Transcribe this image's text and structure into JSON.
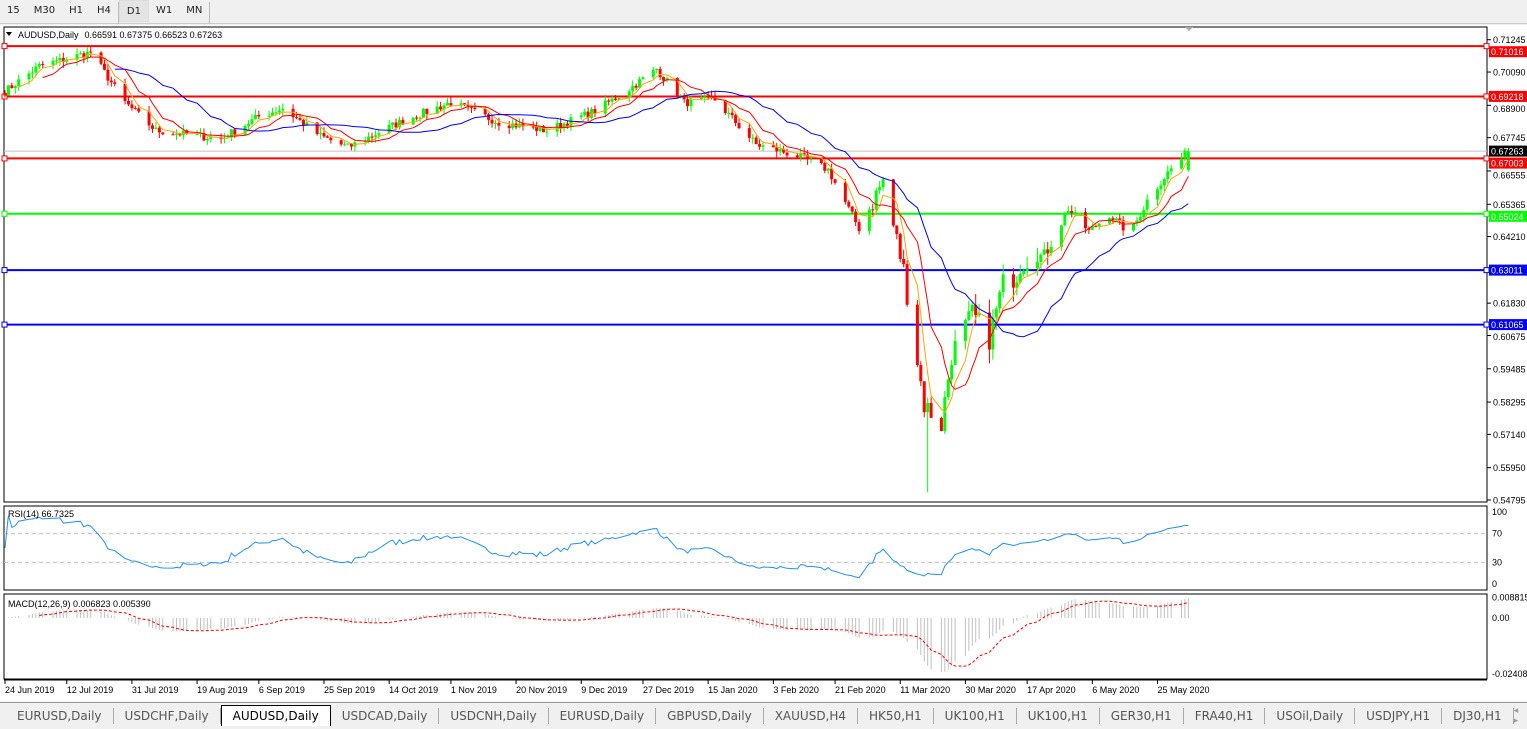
{
  "timeframes": [
    {
      "label": "15"
    },
    {
      "label": "M30"
    },
    {
      "label": "H1"
    },
    {
      "label": "H4"
    },
    {
      "label": "D1",
      "active": true
    },
    {
      "label": "W1"
    },
    {
      "label": "MN"
    }
  ],
  "chart": {
    "symbol_label": "AUDUSD,Daily",
    "ohlc": "0.66591 0.67375 0.66523 0.67263",
    "current_price": "0.67263"
  },
  "colors": {
    "bull": "#00ff00",
    "bear": "#ff0000",
    "ma_fast": "#ffa500",
    "ma_mid": "#ff0000",
    "ma_slow": "#0000ff",
    "rsi": "#1e90ff",
    "macd_signal": "#ff0000",
    "macd_hist": "#c0c0c0"
  },
  "chart_data": {
    "type": "candlestick",
    "price_axis": {
      "ticks": [
        "0.71245",
        "0.70090",
        "0.68900",
        "0.67745",
        "0.66555",
        "0.65365",
        "0.64210",
        "0.61830",
        "0.60675",
        "0.59485",
        "0.58295",
        "0.57140",
        "0.55950",
        "0.54795"
      ],
      "range": [
        0.54795,
        0.7158
      ]
    },
    "horizontal_levels": [
      {
        "value": "0.71016",
        "color": "#ff0000"
      },
      {
        "value": "0.69218",
        "color": "#ff0000"
      },
      {
        "value": "0.67003",
        "color": "#ff0000"
      },
      {
        "value": "0.65024",
        "color": "#00ff00"
      },
      {
        "value": "0.63011",
        "color": "#0000ff"
      },
      {
        "value": "0.61065",
        "color": "#0000ff"
      }
    ],
    "x_ticks": [
      "24 Jun 2019",
      "12 Jul 2019",
      "31 Jul 2019",
      "19 Aug 2019",
      "6 Sep 2019",
      "25 Sep 2019",
      "14 Oct 2019",
      "1 Nov 2019",
      "20 Nov 2019",
      "9 Dec 2019",
      "27 Dec 2019",
      "15 Jan 2020",
      "3 Feb 2020",
      "21 Feb 2020",
      "11 Mar 2020",
      "30 Mar 2020",
      "17 Apr 2020",
      "6 May 2020",
      "25 May 2020"
    ],
    "x_tick_dates": [
      "2019-06-24",
      "2019-07-12",
      "2019-07-31",
      "2019-08-19",
      "2019-09-06",
      "2019-09-25",
      "2019-10-14",
      "2019-11-01",
      "2019-11-20",
      "2019-12-09",
      "2019-12-27",
      "2020-01-15",
      "2020-02-03",
      "2020-02-21",
      "2020-03-11",
      "2020-03-30",
      "2020-04-17",
      "2020-05-06",
      "2020-05-25"
    ],
    "approx_closes": [
      [
        "2019-06-24",
        0.694
      ],
      [
        "2019-07-04",
        0.703
      ],
      [
        "2019-07-19",
        0.708
      ],
      [
        "2019-07-29",
        0.69
      ],
      [
        "2019-08-07",
        0.68
      ],
      [
        "2019-08-26",
        0.677
      ],
      [
        "2019-09-06",
        0.685
      ],
      [
        "2019-09-13",
        0.688
      ],
      [
        "2019-09-24",
        0.678
      ],
      [
        "2019-10-02",
        0.674
      ],
      [
        "2019-10-12",
        0.68
      ],
      [
        "2019-10-19",
        0.684
      ],
      [
        "2019-11-01",
        0.69
      ],
      [
        "2019-11-15",
        0.683
      ],
      [
        "2019-11-29",
        0.68
      ],
      [
        "2019-12-13",
        0.687
      ],
      [
        "2019-12-22",
        0.694
      ],
      [
        "2019-12-31",
        0.702
      ],
      [
        "2020-01-08",
        0.69
      ],
      [
        "2020-01-17",
        0.691
      ],
      [
        "2020-01-29",
        0.675
      ],
      [
        "2020-02-10",
        0.671
      ],
      [
        "2020-02-19",
        0.666
      ],
      [
        "2020-02-28",
        0.645
      ],
      [
        "2020-03-06",
        0.662
      ],
      [
        "2020-03-12",
        0.63
      ],
      [
        "2020-03-18",
        0.582
      ],
      [
        "2020-03-23",
        0.575
      ],
      [
        "2020-03-26",
        0.6
      ],
      [
        "2020-04-01",
        0.614
      ],
      [
        "2020-04-06",
        0.606
      ],
      [
        "2020-04-10",
        0.625
      ],
      [
        "2020-04-17",
        0.632
      ],
      [
        "2020-04-23",
        0.637
      ],
      [
        "2020-04-29",
        0.652
      ],
      [
        "2020-05-05",
        0.644
      ],
      [
        "2020-05-11",
        0.65
      ],
      [
        "2020-05-17",
        0.643
      ],
      [
        "2020-05-22",
        0.655
      ],
      [
        "2020-05-28",
        0.665
      ],
      [
        "2020-06-03",
        0.67263
      ]
    ],
    "rsi": {
      "label": "RSI(14) 66.7325",
      "ticks": [
        "100",
        "70",
        "30",
        "0"
      ],
      "levels": [
        70,
        30
      ]
    },
    "macd": {
      "label": "MACD(12,26,9) 0.006823 0.005390",
      "ticks": [
        "0.008815",
        "0.00",
        "-0.02408"
      ],
      "range": [
        -0.02408,
        0.008815
      ]
    }
  },
  "tabs": [
    {
      "label": "EURUSD,Daily"
    },
    {
      "label": "USDCHF,Daily"
    },
    {
      "label": "AUDUSD,Daily",
      "active": true
    },
    {
      "label": "USDCAD,Daily"
    },
    {
      "label": "USDCNH,Daily"
    },
    {
      "label": "EURUSD,Daily"
    },
    {
      "label": "GBPUSD,Daily"
    },
    {
      "label": "XAUUSD,H4"
    },
    {
      "label": "HK50,H1"
    },
    {
      "label": "UK100,H1"
    },
    {
      "label": "UK100,H1"
    },
    {
      "label": "GER30,H1"
    },
    {
      "label": "FRA40,H1"
    },
    {
      "label": "USOil,Daily"
    },
    {
      "label": "USDJPY,H1"
    },
    {
      "label": "DJ30,H1"
    }
  ],
  "tab_scroll": "◂ ▸"
}
